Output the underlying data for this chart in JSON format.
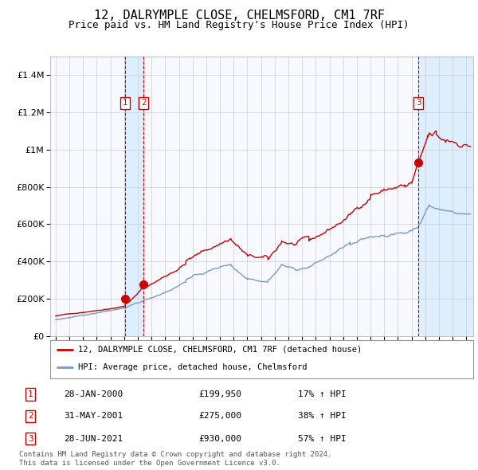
{
  "title": "12, DALRYMPLE CLOSE, CHELMSFORD, CM1 7RF",
  "subtitle": "Price paid vs. HM Land Registry's House Price Index (HPI)",
  "red_label": "12, DALRYMPLE CLOSE, CHELMSFORD, CM1 7RF (detached house)",
  "blue_label": "HPI: Average price, detached house, Chelmsford",
  "footnote1": "Contains HM Land Registry data © Crown copyright and database right 2024.",
  "footnote2": "This data is licensed under the Open Government Licence v3.0.",
  "transactions": [
    {
      "num": 1,
      "date": "28-JAN-2000",
      "price": "£199,950",
      "hpi": "17% ↑ HPI",
      "year": 2000.08
    },
    {
      "num": 2,
      "date": "31-MAY-2001",
      "price": "£275,000",
      "hpi": "38% ↑ HPI",
      "year": 2001.42
    },
    {
      "num": 3,
      "date": "28-JUN-2021",
      "price": "£930,000",
      "hpi": "57% ↑ HPI",
      "year": 2021.49
    }
  ],
  "sale_prices": [
    199950,
    275000,
    930000
  ],
  "sale_years": [
    2000.08,
    2001.42,
    2021.49
  ],
  "ylim": [
    0,
    1500000
  ],
  "xlim_start": 1994.6,
  "xlim_end": 2025.5,
  "plot_bg": "#f8f8ff",
  "grid_color": "#cccccc",
  "red_color": "#cc0000",
  "blue_color": "#7799cc",
  "shade_color": "#ddeeff",
  "title_fontsize": 11,
  "subtitle_fontsize": 9
}
